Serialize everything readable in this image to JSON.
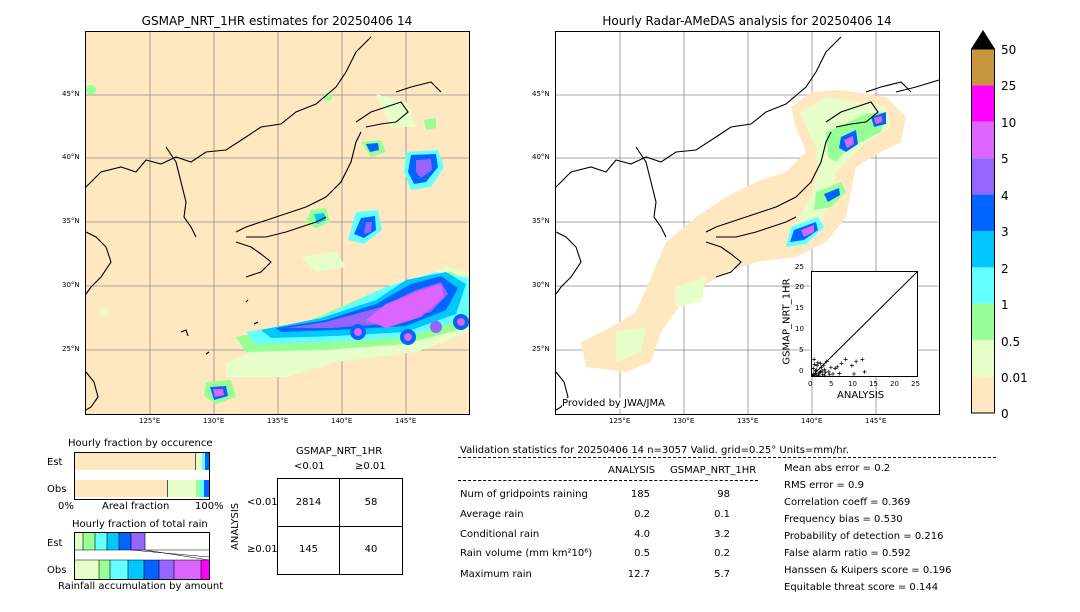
{
  "left_map": {
    "title": "GSMAP_NRT_1HR estimates for 20250406 14",
    "lat_labels": [
      "45°N",
      "40°N",
      "35°N",
      "30°N",
      "25°N"
    ],
    "lon_labels": [
      "125°E",
      "130°E",
      "135°E",
      "140°E",
      "145°E"
    ]
  },
  "right_map": {
    "title": "Hourly Radar-AMeDAS analysis for 20250406 14",
    "lat_labels": [
      "45°N",
      "40°N",
      "35°N",
      "30°N",
      "25°N"
    ],
    "lon_labels": [
      "125°E",
      "130°E",
      "135°E",
      "140°E",
      "145°E"
    ],
    "credit": "Provided by JWA/JMA"
  },
  "colorbar": {
    "labels": [
      "50",
      "25",
      "10",
      "5",
      "4",
      "3",
      "2",
      "1",
      "0.5",
      "0.01",
      "0"
    ],
    "colors": [
      "#c8963c",
      "#ff00ff",
      "#dc64ff",
      "#9664ff",
      "#0064ff",
      "#00c8ff",
      "#64ffff",
      "#96ff96",
      "#e6ffc8",
      "#ffe8c0"
    ]
  },
  "scatter": {
    "ylabel": "GSMAP_NRT_1HR",
    "xlabel": "ANALYSIS",
    "ticks": [
      "0",
      "5",
      "10",
      "15",
      "20",
      "25"
    ],
    "points": [
      [
        0.2,
        0.1
      ],
      [
        0.5,
        0.3
      ],
      [
        1.0,
        0.2
      ],
      [
        1.5,
        0.5
      ],
      [
        0.8,
        1.2
      ],
      [
        2.0,
        1.0
      ],
      [
        2.5,
        0.4
      ],
      [
        3.0,
        1.5
      ],
      [
        1.2,
        2.5
      ],
      [
        0.5,
        4.0
      ],
      [
        3.5,
        3.5
      ],
      [
        4.0,
        1.0
      ],
      [
        4.5,
        2.0
      ],
      [
        5.0,
        0.5
      ],
      [
        5.5,
        1.8
      ],
      [
        6.0,
        2.2
      ],
      [
        2.0,
        3.0
      ],
      [
        7.0,
        3.0
      ],
      [
        8.0,
        4.0
      ],
      [
        9.5,
        2.5
      ],
      [
        10.0,
        0.5
      ],
      [
        10.5,
        3.5
      ],
      [
        12.0,
        4.0
      ],
      [
        12.5,
        1.0
      ],
      [
        3.0,
        0.2
      ],
      [
        1.8,
        0.8
      ],
      [
        0.3,
        1.8
      ],
      [
        2.2,
        2.0
      ],
      [
        4.2,
        0.3
      ],
      [
        6.5,
        0.6
      ],
      [
        0.6,
        2.8
      ],
      [
        1.4,
        3.2
      ],
      [
        2.8,
        2.6
      ],
      [
        0.9,
        0.6
      ],
      [
        1.1,
        1.4
      ],
      [
        3.2,
        0.9
      ],
      [
        0.4,
        0.5
      ],
      [
        0.7,
        0.2
      ],
      [
        1.6,
        0.1
      ],
      [
        2.4,
        1.2
      ]
    ]
  },
  "occurrence": {
    "title": "Hourly fraction by occurence",
    "rows": [
      "Est",
      "Obs"
    ],
    "axis_left": "0%",
    "axis_mid": "Areal fraction",
    "axis_right": "100%"
  },
  "total_rain": {
    "title": "Hourly fraction of total rain",
    "rows": [
      "Est",
      "Obs"
    ],
    "footer": "Rainfall accumulation by amount"
  },
  "contingency": {
    "title": "GSMAP_NRT_1HR",
    "col_lt": "<0.01",
    "col_ge": "≥0.01",
    "side": "ANALYSIS",
    "row_lt": "<0.01",
    "row_ge": "≥0.01",
    "a": "2814",
    "b": "58",
    "c": "145",
    "d": "40"
  },
  "validation": {
    "header": "Validation statistics for 20250406 14  n=3057 Valid. grid=0.25° Units=mm/hr.",
    "col_analysis": "ANALYSIS",
    "col_gsmap": "GSMAP_NRT_1HR",
    "rows": [
      {
        "label": "Num of gridpoints raining",
        "analysis": "185",
        "gsmap": "98"
      },
      {
        "label": "Average rain",
        "analysis": "0.2",
        "gsmap": "0.1"
      },
      {
        "label": "Conditional rain",
        "analysis": "4.0",
        "gsmap": "3.2"
      },
      {
        "label": "Rain volume (mm km²10⁶)",
        "analysis": "0.5",
        "gsmap": "0.2"
      },
      {
        "label": "Maximum rain",
        "analysis": "12.7",
        "gsmap": "5.7"
      }
    ],
    "scores": [
      "Mean abs error =    0.2",
      "RMS error =    0.9",
      "Correlation coeff =  0.369",
      "Frequency bias =  0.530",
      "Probability of detection =  0.216",
      "False alarm ratio =  0.592",
      "Hanssen & Kuipers score =  0.196",
      "Equitable threat score =  0.144"
    ]
  }
}
